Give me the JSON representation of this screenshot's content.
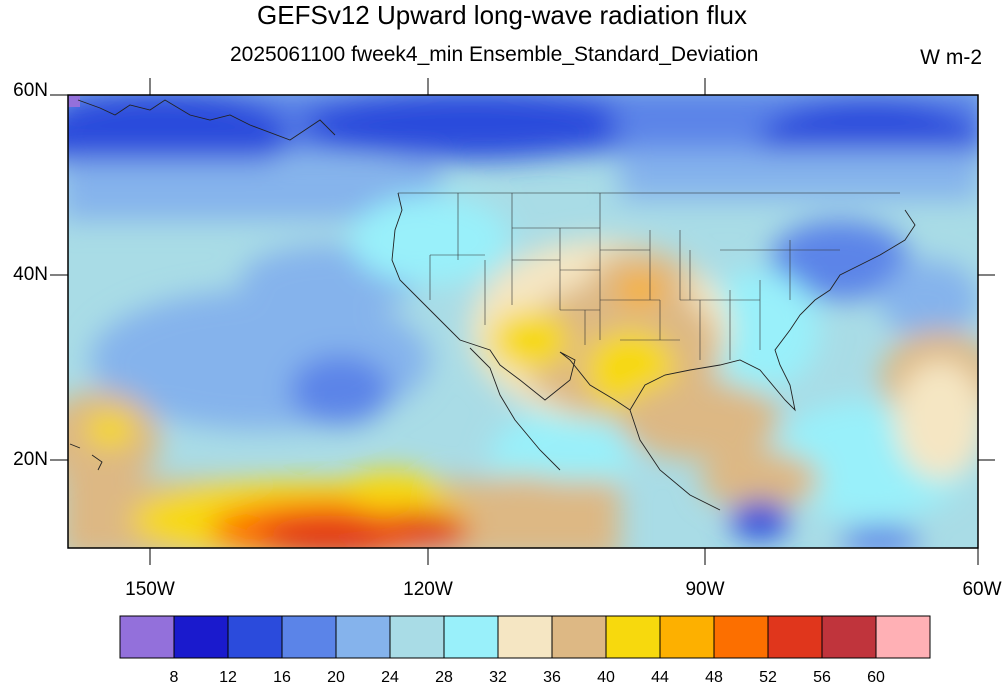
{
  "title": "GEFSv12 Upward long-wave radiation flux",
  "subtitle": "2025061100 fweek4_min Ensemble_Standard_Deviation",
  "units": "W m-2",
  "lat_labels": [
    "60N",
    "40N",
    "20N"
  ],
  "lon_labels": [
    "150W",
    "120W",
    "90W",
    "60W"
  ],
  "map_extent": {
    "lon_min": -159,
    "lon_max": -60,
    "lat_min": 10,
    "lat_max": 60
  },
  "colorbar": {
    "levels": [
      "8",
      "12",
      "16",
      "20",
      "24",
      "28",
      "32",
      "36",
      "40",
      "44",
      "48",
      "52",
      "56",
      "60"
    ],
    "colors": [
      "#9370db",
      "#1a1acd",
      "#2b4bdc",
      "#5b84e8",
      "#85b3ec",
      "#a9dce6",
      "#99f0fa",
      "#f5e6c3",
      "#ddb884",
      "#f7d90d",
      "#fdb000",
      "#fc6f00",
      "#e0361c",
      "#c0343c",
      "#ffb0b5"
    ]
  }
}
